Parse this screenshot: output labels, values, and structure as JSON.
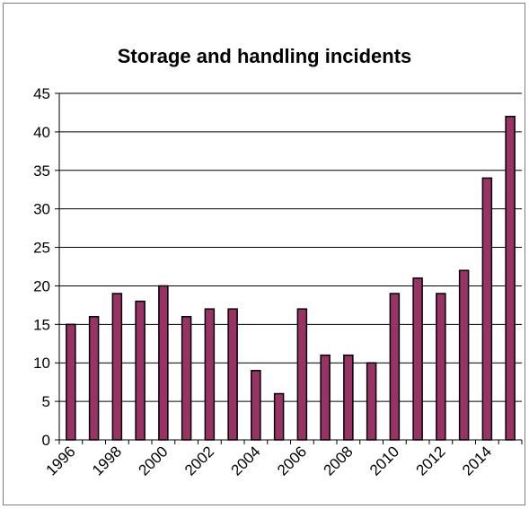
{
  "chart_data": {
    "type": "bar",
    "title": "Storage and handling incidents",
    "xlabel": "",
    "ylabel": "",
    "categories": [
      "1996",
      "1997",
      "1998",
      "1999",
      "2000",
      "2001",
      "2002",
      "2003",
      "2004",
      "2005",
      "2006",
      "2007",
      "2008",
      "2009",
      "2010",
      "2011",
      "2012",
      "2013",
      "2014",
      "2015"
    ],
    "x_tick_labels": [
      "1996",
      "1998",
      "2000",
      "2002",
      "2004",
      "2006",
      "2008",
      "2010",
      "2012",
      "2014"
    ],
    "values": [
      15,
      16,
      19,
      18,
      20,
      16,
      17,
      17,
      9,
      6,
      17,
      11,
      11,
      10,
      19,
      21,
      19,
      22,
      34,
      42
    ],
    "ylim": [
      0,
      45
    ],
    "y_ticks": [
      0,
      5,
      10,
      15,
      20,
      25,
      30,
      35,
      40,
      45
    ],
    "grid": true,
    "legend": "none",
    "bar_color": "#993366",
    "bar_outline": "#000000"
  }
}
